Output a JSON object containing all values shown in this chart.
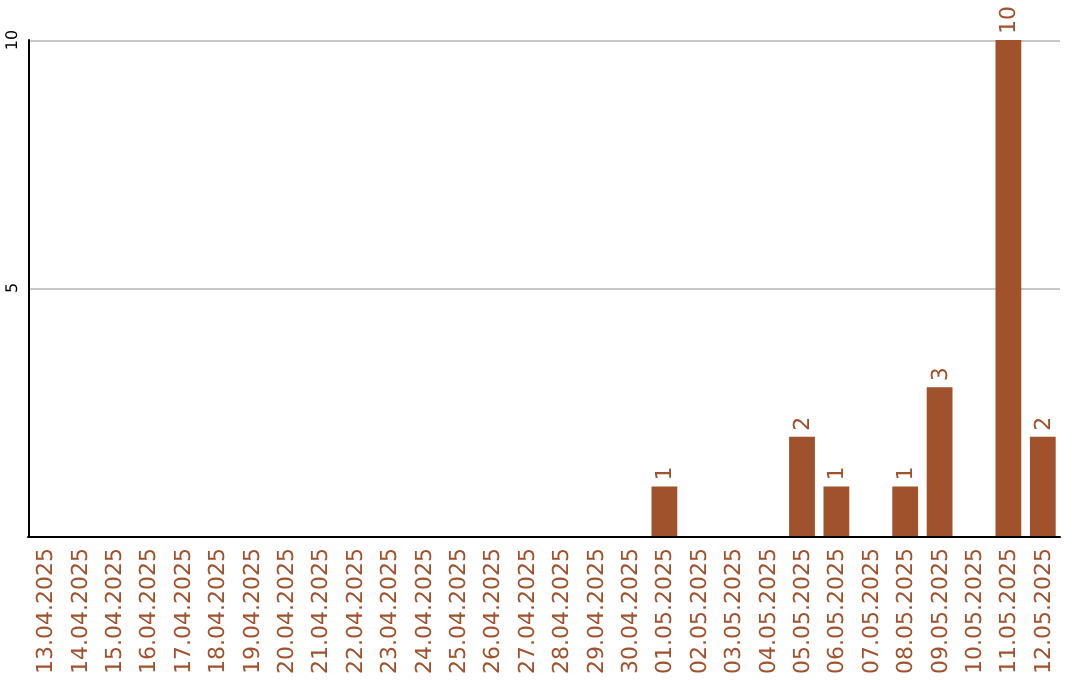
{
  "chart_data": {
    "type": "bar",
    "categories": [
      "13.04.2025",
      "14.04.2025",
      "15.04.2025",
      "16.04.2025",
      "17.04.2025",
      "18.04.2025",
      "19.04.2025",
      "20.04.2025",
      "21.04.2025",
      "22.04.2025",
      "23.04.2025",
      "24.04.2025",
      "25.04.2025",
      "26.04.2025",
      "27.04.2025",
      "28.04.2025",
      "29.04.2025",
      "30.04.2025",
      "01.05.2025",
      "02.05.2025",
      "03.05.2025",
      "04.05.2025",
      "05.05.2025",
      "06.05.2025",
      "07.05.2025",
      "08.05.2025",
      "09.05.2025",
      "10.05.2025",
      "11.05.2025",
      "12.05.2025"
    ],
    "values": [
      0,
      0,
      0,
      0,
      0,
      0,
      0,
      0,
      0,
      0,
      0,
      0,
      0,
      0,
      0,
      0,
      0,
      0,
      1,
      0,
      0,
      0,
      2,
      1,
      0,
      1,
      3,
      0,
      10,
      2
    ],
    "value_labels": [
      null,
      null,
      null,
      null,
      null,
      null,
      null,
      null,
      null,
      null,
      null,
      null,
      null,
      null,
      null,
      null,
      null,
      null,
      "1",
      null,
      null,
      null,
      "2",
      "1",
      null,
      "1",
      "3",
      null,
      "10",
      "2"
    ],
    "color": "#a0522d",
    "ylim": [
      0,
      10
    ],
    "yticks": [
      5,
      10
    ],
    "grid": "y"
  }
}
